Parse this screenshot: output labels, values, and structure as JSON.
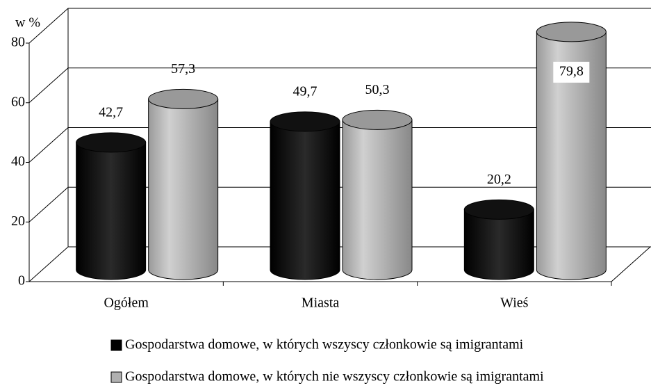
{
  "chart_data": {
    "type": "bar3d",
    "y_axis_label": "w %",
    "categories": [
      "Ogółem",
      "Miasta",
      "Wieś"
    ],
    "series": [
      {
        "name": "Gospodarstwa domowe, w których wszyscy członkowie są imigrantami",
        "color": "#000000",
        "values": [
          42.7,
          49.7,
          20.2
        ],
        "value_labels": [
          "42,7",
          "49,7",
          "20,2"
        ]
      },
      {
        "name": "Gospodarstwa domowe, w których nie wszyscy członkowie są imigrantami",
        "color": "#b0b0b0",
        "values": [
          57.3,
          50.3,
          79.8
        ],
        "value_labels": [
          "57,3",
          "50,3",
          "79,8"
        ]
      }
    ],
    "ylim": [
      0,
      80
    ],
    "yticks": [
      0,
      20,
      40,
      60,
      80
    ],
    "grid": true
  }
}
